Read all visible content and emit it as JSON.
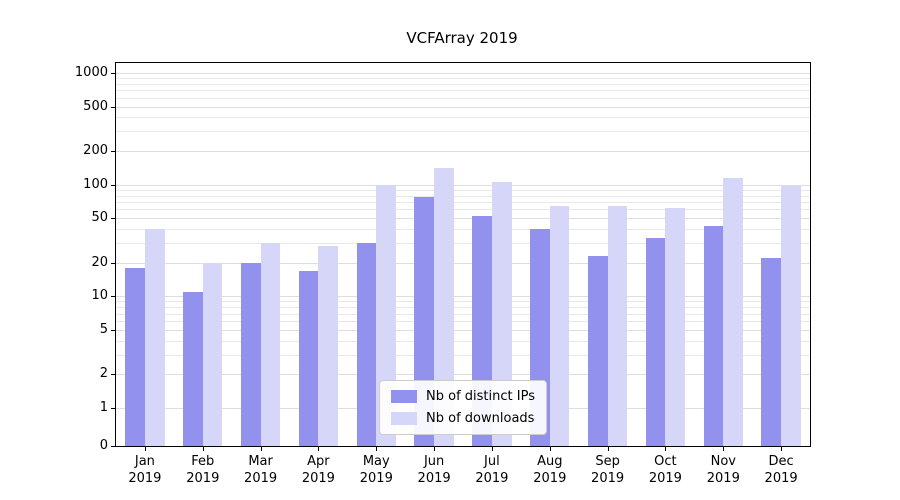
{
  "chart_data": {
    "type": "bar",
    "title": "VCFArray 2019",
    "scale": "symlog",
    "xlabel": "",
    "ylabel": "",
    "grid": "both",
    "legend_position": "lower center",
    "yticks": [
      0,
      1,
      2,
      5,
      10,
      20,
      50,
      100,
      200,
      500,
      1000
    ],
    "ylim": [
      0,
      1000
    ],
    "categories": [
      "Jan 2019",
      "Feb 2019",
      "Mar 2019",
      "Apr 2019",
      "May 2019",
      "Jun 2019",
      "Jul 2019",
      "Aug 2019",
      "Sep 2019",
      "Oct 2019",
      "Nov 2019",
      "Dec 2019"
    ],
    "series": [
      {
        "name": "Nb of distinct IPs",
        "color": "#9292ee",
        "values": [
          18,
          11,
          20,
          17,
          30,
          78,
          52,
          40,
          23,
          33,
          43,
          22
        ]
      },
      {
        "name": "Nb of downloads",
        "color": "#d6d6f8",
        "values": [
          40,
          20,
          30,
          28,
          100,
          140,
          105,
          65,
          65,
          62,
          115,
          97
        ]
      }
    ],
    "colors": {
      "grid_minor": "#e8e8e8",
      "grid_major": "#dedede",
      "axis": "#000000",
      "text": "#000000",
      "background": "#ffffff"
    }
  }
}
